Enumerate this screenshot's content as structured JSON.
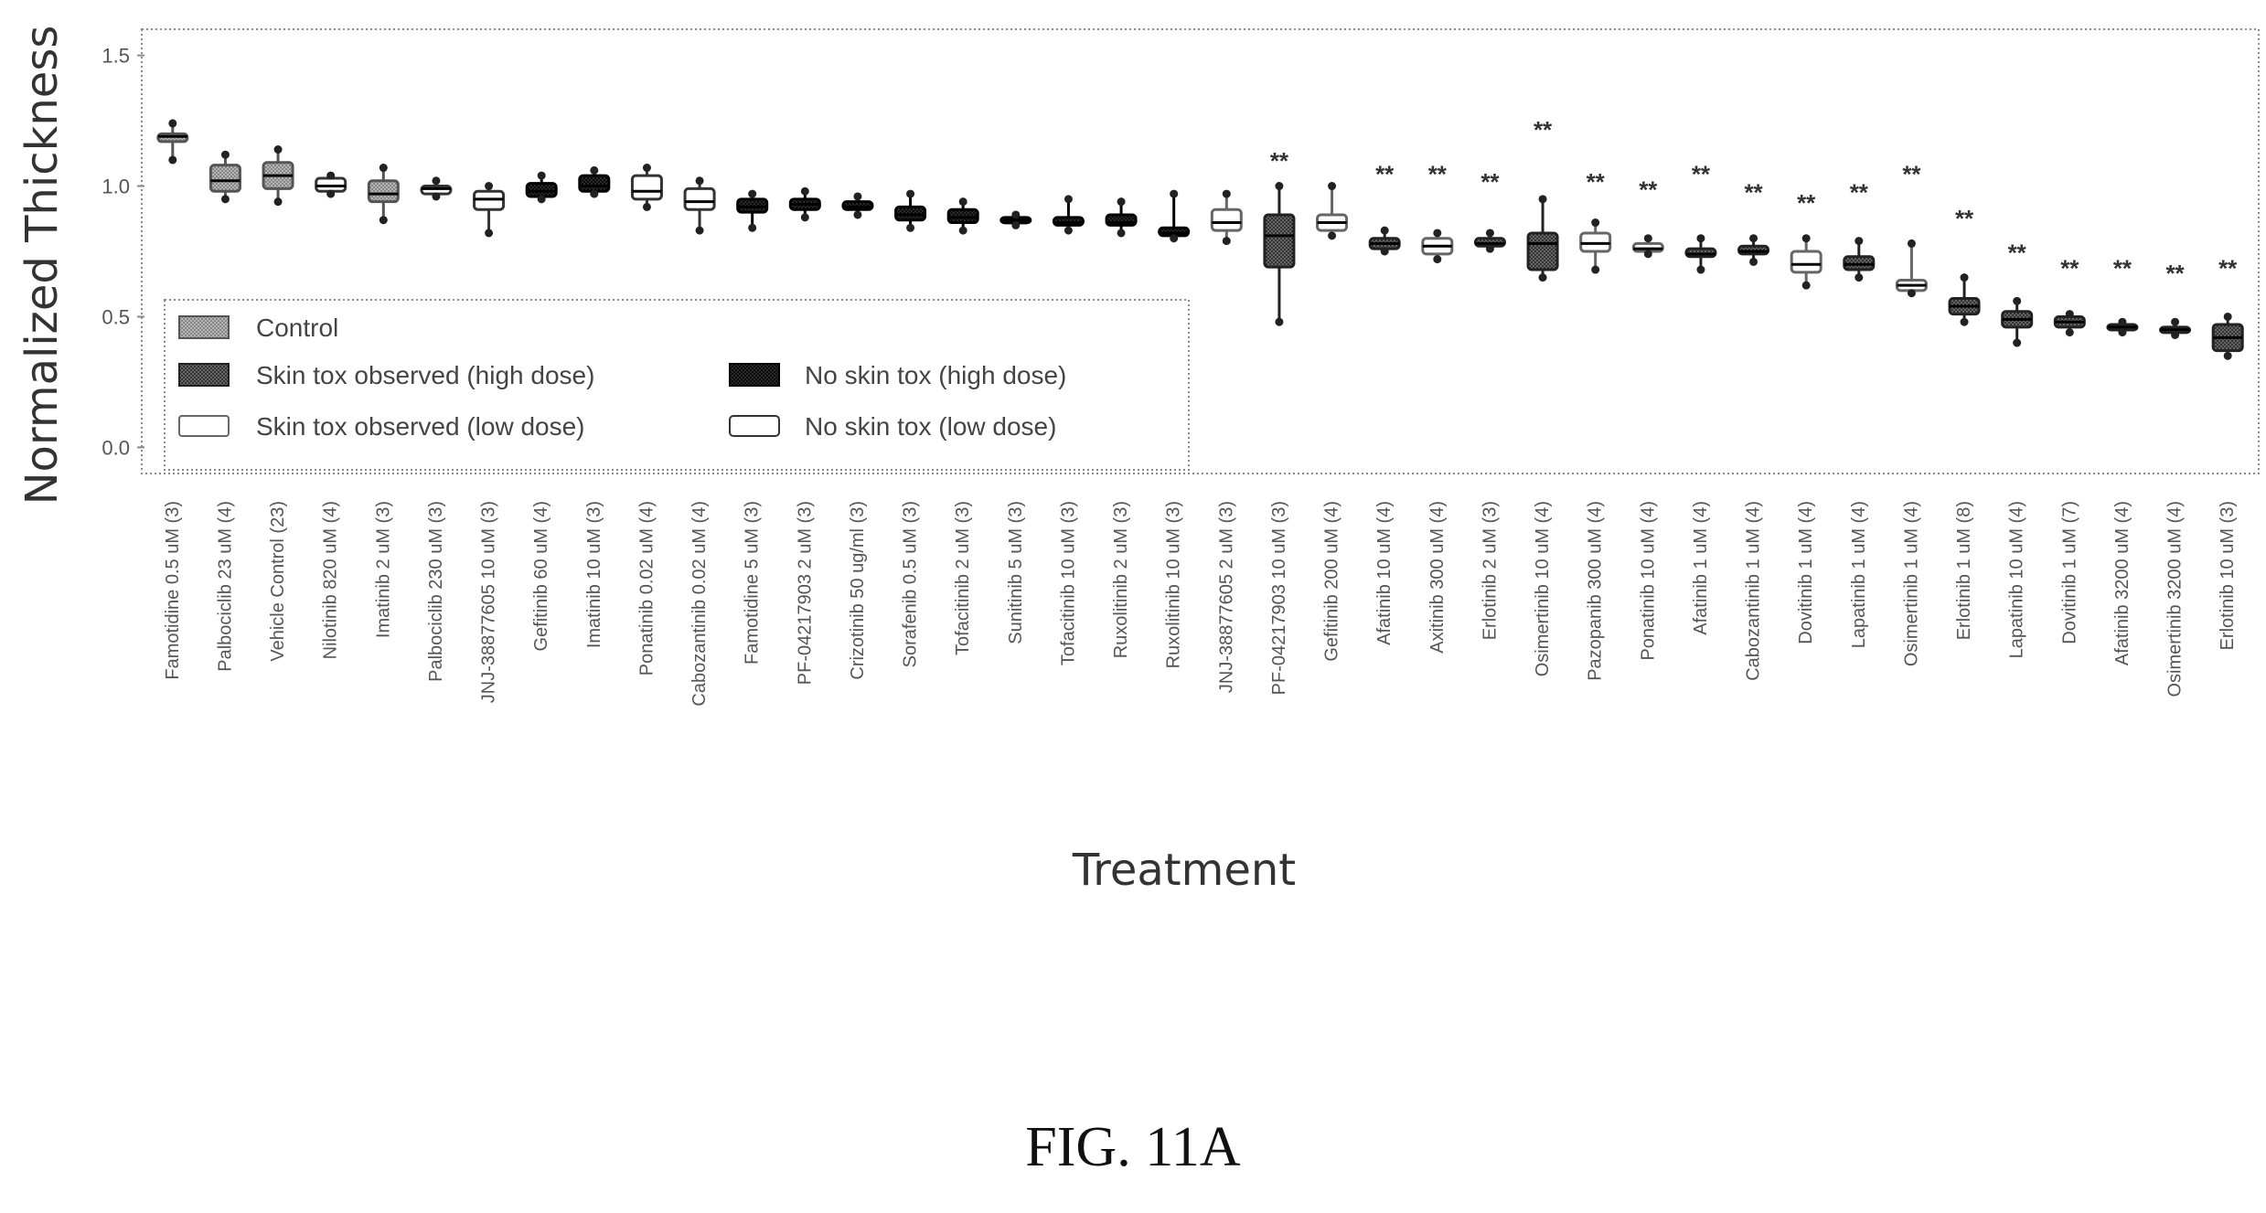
{
  "figure": {
    "caption": "FIG. 11A"
  },
  "chart_data": {
    "type": "box",
    "xlabel": "Treatment",
    "ylabel": "Normalized Thickness",
    "ylim": [
      -0.1,
      1.6
    ],
    "yticks": [
      0.0,
      0.5,
      1.0,
      1.5
    ],
    "ytick_labels": [
      "0.0",
      "0.5",
      "1.0",
      "1.5"
    ],
    "grid": false,
    "legend": {
      "position": "bottom-left",
      "entries": [
        {
          "label": "Control",
          "fill": "#9a9a9a",
          "stroke": "#555555"
        },
        {
          "label": "Skin tox observed (high dose)",
          "fill": "#5a5a5a",
          "stroke": "#222222"
        },
        {
          "label": "No skin tox (high dose)",
          "fill": "#1e1e1e",
          "stroke": "#000000"
        },
        {
          "label": "Skin tox observed (low dose)",
          "fill": "#ffffff",
          "stroke": "#666666"
        },
        {
          "label": "No skin tox (low dose)",
          "fill": "#ffffff",
          "stroke": "#333333"
        }
      ]
    },
    "categories": [
      "Famotidine 0.5 uM (3)",
      "Palbociclib 23 uM (4)",
      "Vehicle Control (23)",
      "Nilotinib 820 uM (4)",
      "Imatinib 2 uM (3)",
      "Palbociclib 230 uM (3)",
      "JNJ-38877605 10 uM (3)",
      "Gefitinib 60 uM (4)",
      "Imatinib 10 uM (3)",
      "Ponatinib 0.02 uM (4)",
      "Cabozantinib 0.02 uM (4)",
      "Famotidine 5 uM (3)",
      "PF-04217903 2 uM (3)",
      "Crizotinib 50 ug/ml (3)",
      "Sorafenib 0.5 uM (3)",
      "Tofacitinib 2 uM (3)",
      "Sunitinib 5 uM (3)",
      "Tofacitinib 10 uM (3)",
      "Ruxolitinib 2 uM (3)",
      "Ruxolitinib 10 uM (3)",
      "JNJ-38877605 2 uM (3)",
      "PF-04217903 10 uM (3)",
      "Gefitinib 200 uM (4)",
      "Afatinib 10 uM (4)",
      "Axitinib 300 uM (4)",
      "Erlotinib 2 uM (3)",
      "Osimertinib 10 uM (4)",
      "Pazopanib 300 uM (4)",
      "Ponatinib 10 uM (4)",
      "Afatinib 1 uM (4)",
      "Cabozantinib 1 uM (4)",
      "Dovitinib 1 uM (4)",
      "Lapatinib 1 uM (4)",
      "Osimertinib 1 uM (4)",
      "Erlotinib 1 uM (8)",
      "Lapatinib 10 uM (4)",
      "Dovitinib 1 uM (7)",
      "Afatinib 3200 uM (4)",
      "Osimertinib 3200 uM (4)",
      "Erlotinib 10 uM (3)"
    ],
    "series": [
      {
        "group_index": [
          0,
          0,
          0,
          4,
          0,
          4,
          4,
          2,
          2,
          4,
          4,
          2,
          2,
          2,
          2,
          2,
          2,
          2,
          2,
          2,
          3,
          1,
          3,
          1,
          3,
          1,
          1,
          3,
          3,
          1,
          1,
          3,
          1,
          3,
          1,
          1,
          1,
          1,
          1,
          1
        ],
        "median": [
          1.19,
          1.02,
          1.04,
          1.0,
          0.97,
          0.99,
          0.95,
          0.98,
          1.0,
          0.98,
          0.94,
          0.92,
          0.93,
          0.92,
          0.89,
          0.88,
          0.87,
          0.86,
          0.86,
          0.82,
          0.86,
          0.81,
          0.86,
          0.78,
          0.77,
          0.78,
          0.78,
          0.78,
          0.76,
          0.74,
          0.75,
          0.7,
          0.7,
          0.62,
          0.54,
          0.49,
          0.48,
          0.46,
          0.45,
          0.42
        ],
        "q1": [
          1.17,
          0.98,
          0.99,
          0.98,
          0.94,
          0.97,
          0.91,
          0.96,
          0.98,
          0.95,
          0.91,
          0.9,
          0.91,
          0.91,
          0.87,
          0.86,
          0.86,
          0.85,
          0.85,
          0.81,
          0.83,
          0.69,
          0.83,
          0.76,
          0.74,
          0.77,
          0.68,
          0.75,
          0.75,
          0.73,
          0.74,
          0.67,
          0.68,
          0.6,
          0.51,
          0.46,
          0.46,
          0.45,
          0.44,
          0.37
        ],
        "q3": [
          1.2,
          1.08,
          1.09,
          1.03,
          1.02,
          1.0,
          0.98,
          1.01,
          1.04,
          1.04,
          0.99,
          0.95,
          0.95,
          0.94,
          0.92,
          0.91,
          0.88,
          0.88,
          0.89,
          0.84,
          0.91,
          0.89,
          0.89,
          0.8,
          0.8,
          0.8,
          0.82,
          0.82,
          0.78,
          0.76,
          0.77,
          0.75,
          0.73,
          0.64,
          0.57,
          0.52,
          0.5,
          0.47,
          0.46,
          0.47
        ],
        "whisker_low": [
          1.1,
          0.95,
          0.94,
          0.97,
          0.87,
          0.96,
          0.82,
          0.95,
          0.97,
          0.92,
          0.83,
          0.84,
          0.88,
          0.89,
          0.84,
          0.83,
          0.85,
          0.83,
          0.82,
          0.8,
          0.79,
          0.48,
          0.81,
          0.75,
          0.72,
          0.76,
          0.65,
          0.68,
          0.74,
          0.68,
          0.71,
          0.62,
          0.65,
          0.59,
          0.48,
          0.4,
          0.44,
          0.44,
          0.43,
          0.35
        ],
        "whisker_high": [
          1.24,
          1.12,
          1.14,
          1.04,
          1.07,
          1.02,
          1.0,
          1.04,
          1.06,
          1.07,
          1.02,
          0.97,
          0.98,
          0.96,
          0.97,
          0.94,
          0.89,
          0.95,
          0.94,
          0.97,
          0.97,
          1.0,
          1.0,
          0.83,
          0.82,
          0.82,
          0.95,
          0.86,
          0.8,
          0.8,
          0.8,
          0.8,
          0.79,
          0.78,
          0.65,
          0.56,
          0.51,
          0.48,
          0.48,
          0.5
        ]
      }
    ],
    "significance": [
      "",
      "",
      "",
      "",
      "",
      "",
      "",
      "",
      "",
      "",
      "",
      "",
      "",
      "",
      "",
      "",
      "",
      "",
      "",
      "",
      "",
      "**",
      "",
      "**",
      "**",
      "**",
      "**",
      "**",
      "**",
      "**",
      "**",
      "**",
      "**",
      "**",
      "**",
      "**",
      "**",
      "**",
      "**",
      "**"
    ],
    "significance_y": [
      0,
      0,
      0,
      0,
      0,
      0,
      0,
      0,
      0,
      0,
      0,
      0,
      0,
      0,
      0,
      0,
      0,
      0,
      0,
      0,
      0,
      1.05,
      0,
      1.0,
      1.0,
      0.97,
      1.17,
      0.97,
      0.94,
      1.0,
      0.93,
      0.89,
      0.93,
      1.0,
      0.83,
      0.7,
      0.64,
      0.64,
      0.62,
      0.64
    ]
  }
}
